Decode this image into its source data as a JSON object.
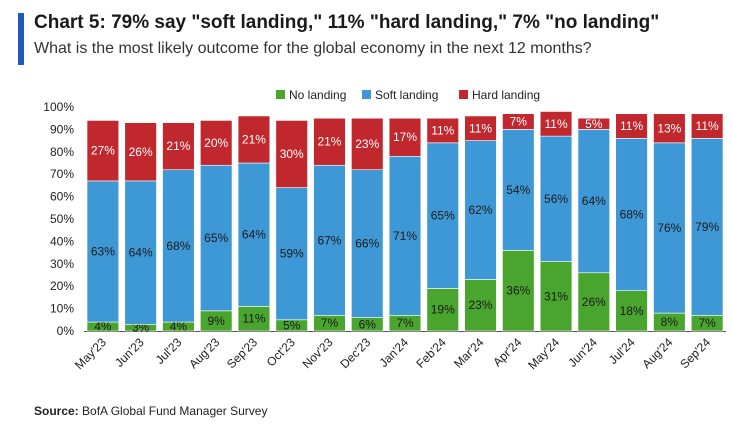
{
  "header": {
    "title": "Chart 5: 79% say \"soft landing,\" 11% \"hard landing,\" 7% \"no landing\"",
    "subtitle": "What is the most likely outcome for the global economy in the next 12 months?"
  },
  "source": {
    "label": "Source:",
    "text": "BofA Global Fund Manager Survey"
  },
  "chart_data": {
    "type": "bar",
    "stacked": true,
    "title": "Chart 5: 79% say \"soft landing,\" 11% \"hard landing,\" 7% \"no landing\"",
    "subtitle": "What is the most likely outcome for the global economy in the next 12 months?",
    "categories": [
      "May'23",
      "Jun'23",
      "Jul'23",
      "Aug'23",
      "Sep'23",
      "Oct'23",
      "Nov'23",
      "Dec'23",
      "Jan'24",
      "Feb'24",
      "Mar'24",
      "Apr'24",
      "May'24",
      "Jun'24",
      "Jul'24",
      "Aug'24",
      "Sep'24"
    ],
    "series": [
      {
        "name": "No landing",
        "color": "#4aa52e",
        "values": [
          4,
          3,
          4,
          9,
          11,
          5,
          7,
          6,
          7,
          19,
          23,
          36,
          31,
          26,
          18,
          8,
          7
        ]
      },
      {
        "name": "Soft landing",
        "color": "#3f98d6",
        "values": [
          63,
          64,
          68,
          65,
          64,
          59,
          67,
          66,
          71,
          65,
          62,
          54,
          56,
          64,
          68,
          76,
          79
        ]
      },
      {
        "name": "Hard landing",
        "color": "#c0282e",
        "values": [
          27,
          26,
          21,
          20,
          21,
          30,
          21,
          23,
          17,
          11,
          11,
          7,
          11,
          5,
          11,
          13,
          11
        ]
      }
    ],
    "ylim": [
      0,
      100
    ],
    "yticks": [
      "0%",
      "10%",
      "20%",
      "30%",
      "40%",
      "50%",
      "60%",
      "70%",
      "80%",
      "90%",
      "100%"
    ],
    "value_suffix": "%",
    "legend_position": "top-center",
    "grid": false
  }
}
